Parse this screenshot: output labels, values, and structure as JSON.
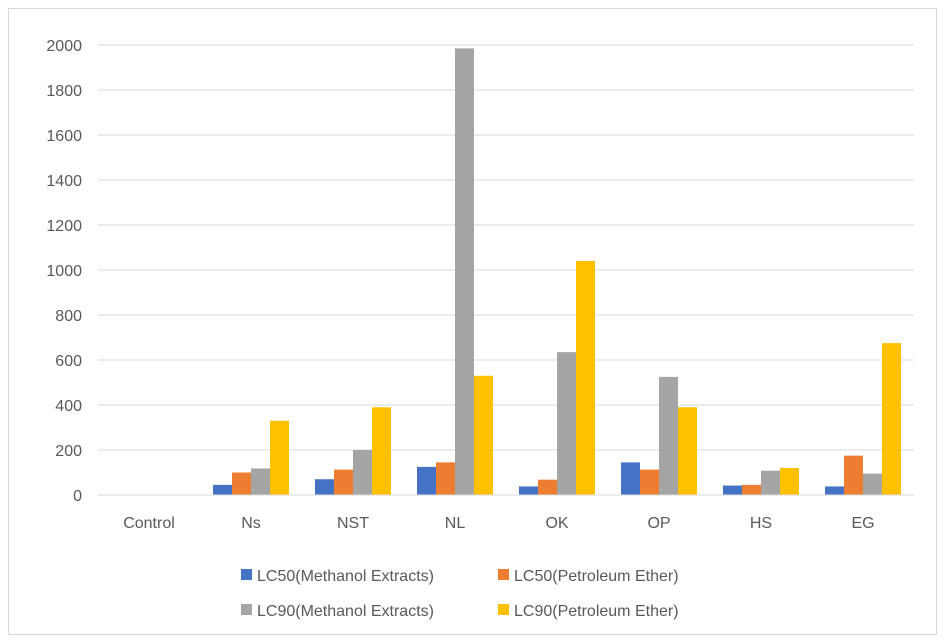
{
  "chart_data": {
    "type": "bar",
    "title": "",
    "xlabel": "",
    "ylabel": "",
    "categories": [
      "Control",
      "Ns",
      "NST",
      "NL",
      "OK",
      "OP",
      "HS",
      "EG"
    ],
    "series": [
      {
        "name": "LC50(Methanol Extracts)",
        "color": "#4472c4",
        "values": [
          0,
          45,
          70,
          125,
          38,
          145,
          42,
          38
        ]
      },
      {
        "name": "LC50(Petroleum Ether)",
        "color": "#ed7d31",
        "values": [
          0,
          100,
          113,
          145,
          68,
          113,
          45,
          175
        ]
      },
      {
        "name": "LC90(Methanol Extracts)",
        "color": "#a5a5a5",
        "values": [
          0,
          118,
          200,
          1985,
          635,
          525,
          108,
          95
        ]
      },
      {
        "name": "LC90(Petroleum Ether)",
        "color": "#ffc000",
        "values": [
          0,
          330,
          390,
          530,
          1040,
          390,
          120,
          675
        ]
      }
    ],
    "ylim": [
      0,
      2000
    ],
    "yticks": [
      0,
      200,
      400,
      600,
      800,
      1000,
      1200,
      1400,
      1600,
      1800,
      2000
    ],
    "grid": true,
    "legend_position": "bottom"
  }
}
